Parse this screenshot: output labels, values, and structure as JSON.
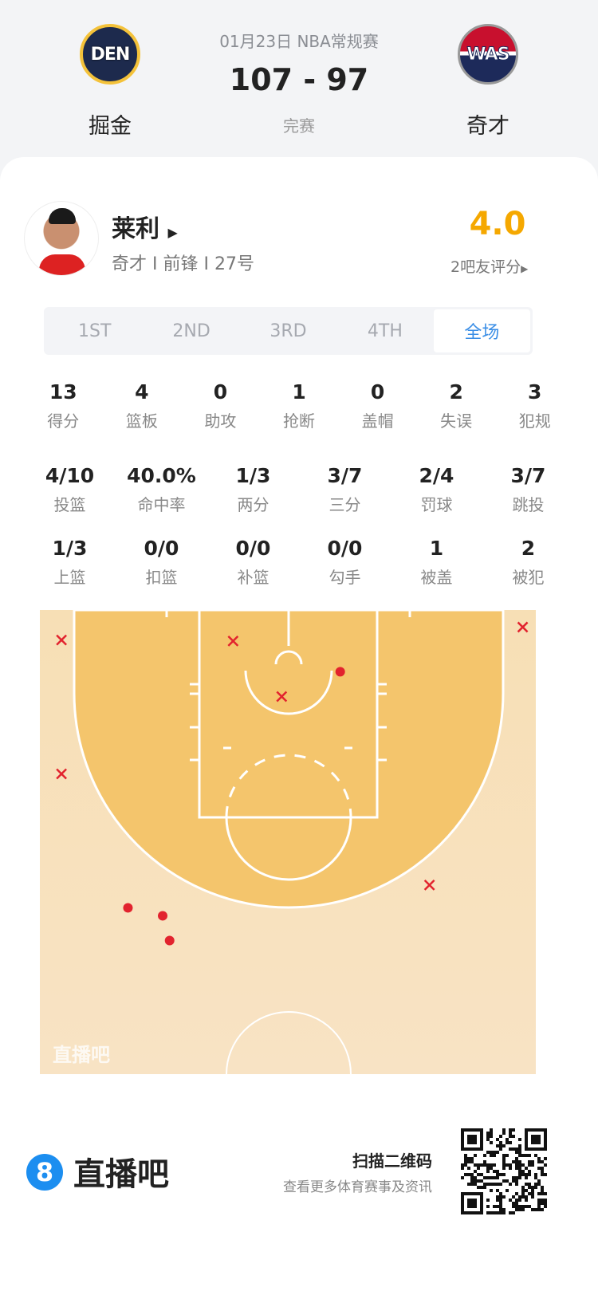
{
  "match": {
    "date_league": "01月23日 NBA常规赛",
    "score": "107 - 97",
    "status": "完赛",
    "home": {
      "abbr": "DEN",
      "name": "掘金"
    },
    "away": {
      "abbr": "WAS",
      "name": "奇才"
    }
  },
  "player": {
    "name": "莱利",
    "info": "奇才 I 前锋 I 27号",
    "rating": "4.0",
    "rating_label": "2吧友评分"
  },
  "tabs": [
    {
      "label": "1ST"
    },
    {
      "label": "2ND"
    },
    {
      "label": "3RD"
    },
    {
      "label": "4TH"
    },
    {
      "label": "全场",
      "selected": true
    }
  ],
  "stats_rows": [
    [
      {
        "v": "13",
        "l": "得分"
      },
      {
        "v": "4",
        "l": "篮板"
      },
      {
        "v": "0",
        "l": "助攻"
      },
      {
        "v": "1",
        "l": "抢断"
      },
      {
        "v": "0",
        "l": "盖帽"
      },
      {
        "v": "2",
        "l": "失误"
      },
      {
        "v": "3",
        "l": "犯规"
      }
    ],
    [
      {
        "v": "4/10",
        "l": "投篮"
      },
      {
        "v": "40.0%",
        "l": "命中率"
      },
      {
        "v": "1/3",
        "l": "两分"
      },
      {
        "v": "3/7",
        "l": "三分"
      },
      {
        "v": "2/4",
        "l": "罚球"
      },
      {
        "v": "3/7",
        "l": "跳投"
      }
    ],
    [
      {
        "v": "1/3",
        "l": "上篮"
      },
      {
        "v": "0/0",
        "l": "扣篮"
      },
      {
        "v": "0/0",
        "l": "补篮"
      },
      {
        "v": "0/0",
        "l": "勾手"
      },
      {
        "v": "1",
        "l": "被盖"
      },
      {
        "v": "2",
        "l": "被犯"
      }
    ]
  ],
  "chart_data": {
    "type": "scatter",
    "units": "feet from hoop (x lateral, y toward half-court)",
    "made": [
      [
        5.2,
        1.4
      ],
      [
        -16.2,
        25.2
      ],
      [
        -12.7,
        26.0
      ],
      [
        -12.0,
        28.5
      ]
    ],
    "missed": [
      [
        -22.9,
        -1.8
      ],
      [
        -5.6,
        -1.7
      ],
      [
        23.6,
        -3.1
      ],
      [
        -0.7,
        3.9
      ],
      [
        -22.9,
        11.7
      ],
      [
        14.2,
        22.9
      ]
    ],
    "watermark": "直播吧",
    "colors": {
      "shot": "#e2232e",
      "paint": "#f4c56c",
      "floor": "#f8e1bd"
    }
  },
  "footer": {
    "brand": "直播吧",
    "brand_icon": "8",
    "scan": "扫描二维码",
    "sub": "查看更多体育赛事及资讯"
  },
  "colors": {
    "accent": "#3a8ee6",
    "rating": "#f5a800"
  }
}
